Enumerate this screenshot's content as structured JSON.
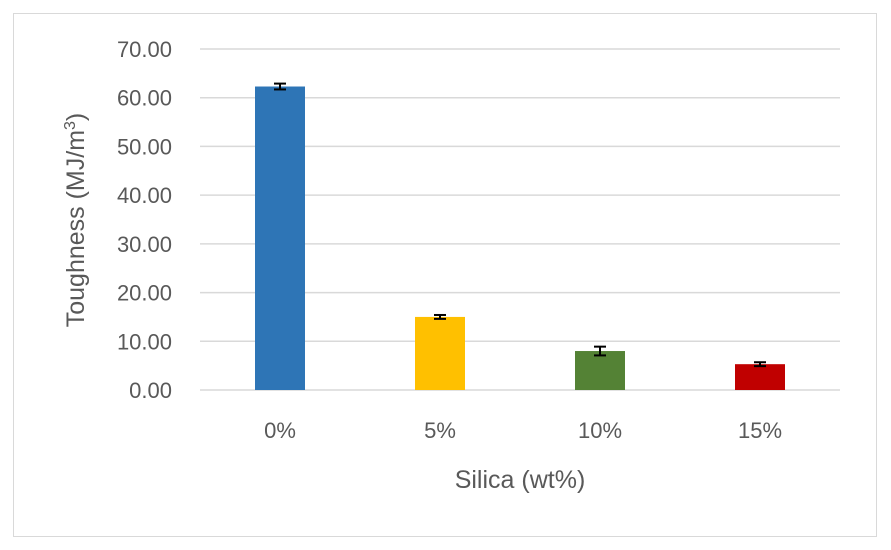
{
  "chart_data": {
    "type": "bar",
    "title": "",
    "xlabel": "Silica (wt%)",
    "ylabel": "Toughness (MJ/m",
    "ylabel_superscript": "3",
    "ylabel_close": ")",
    "categories": [
      "0%",
      "5%",
      "10%",
      "15%"
    ],
    "values": [
      62.3,
      15.0,
      8.0,
      5.3
    ],
    "errors": [
      0.6,
      0.4,
      0.9,
      0.4
    ],
    "colors": [
      "#2e75b6",
      "#ffc000",
      "#548235",
      "#c00000"
    ],
    "ylim": [
      0,
      70
    ],
    "yticks": [
      "0.00",
      "10.00",
      "20.00",
      "30.00",
      "40.00",
      "50.00",
      "60.00",
      "70.00"
    ],
    "grid": true,
    "legend": "none"
  }
}
